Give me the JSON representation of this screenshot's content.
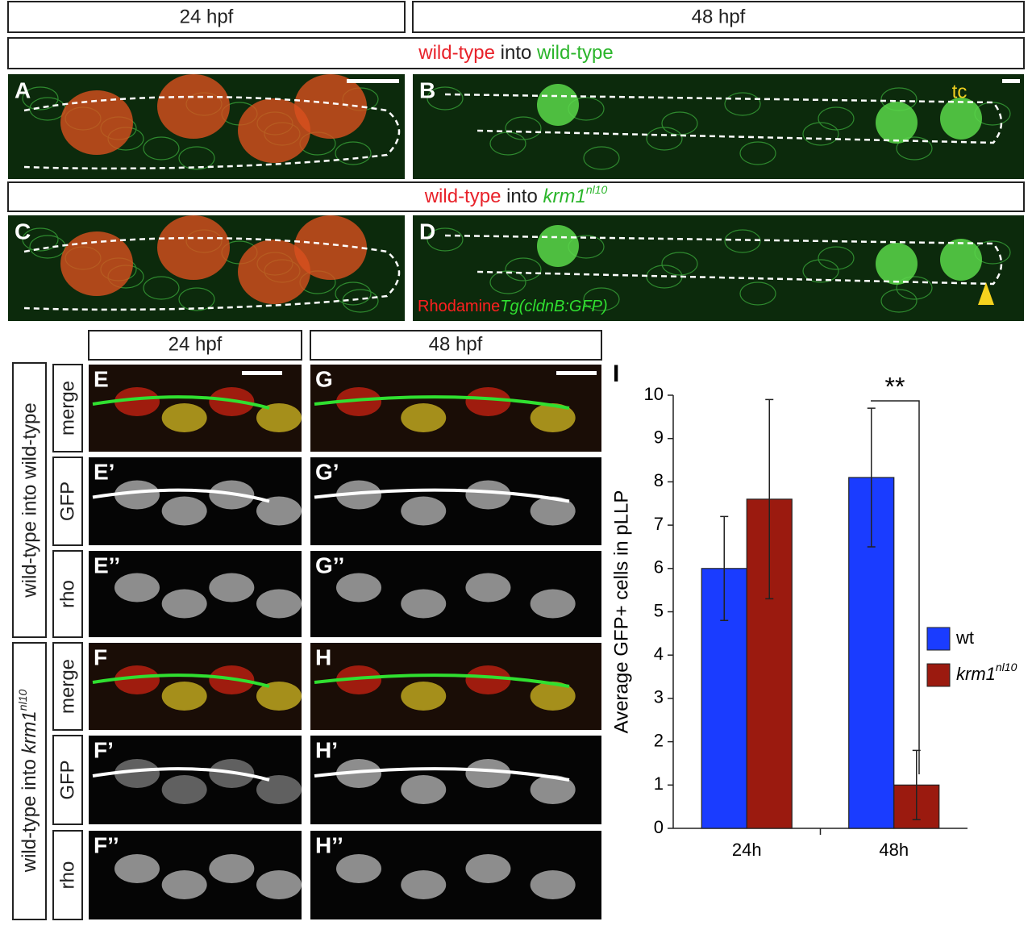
{
  "header": {
    "col_24": "24 hpf",
    "col_48": "48 hpf"
  },
  "top": {
    "row1": {
      "a": "wild-type",
      "b": "into",
      "c": "wild-type"
    },
    "row2": {
      "a": "wild-type",
      "b": "into",
      "c": "krm1",
      "c_sup": "nl10"
    },
    "panels": [
      "A",
      "B",
      "C",
      "D"
    ],
    "tc": "tc",
    "legend": {
      "a": "Rhodamine",
      "b": "Tg(cldnB:GFP)"
    }
  },
  "bottom": {
    "col_24": "24 hpf",
    "col_48": "48 hpf",
    "group1": "wild-type into wild-type",
    "group2": {
      "a": "wild-type into ",
      "b": "krm1",
      "b_sup": "nl10"
    },
    "channels": [
      "merge",
      "GFP",
      "rho",
      "merge",
      "GFP",
      "rho"
    ],
    "panels_left": [
      "E",
      "E’",
      "E’’",
      "F",
      "F’",
      "F’’"
    ],
    "panels_right": [
      "G",
      "G’",
      "G’’",
      "H",
      "H’",
      "H’’"
    ]
  },
  "chart_data": {
    "type": "bar",
    "panel_label": "I",
    "ylabel": "Average GFP+ cells in pLLP",
    "categories": [
      "24h",
      "48h"
    ],
    "series": [
      {
        "name": "wt",
        "color": "#1a3cff",
        "values": [
          6,
          8.1
        ],
        "errors": [
          1.2,
          1.6
        ]
      },
      {
        "name": "krm1",
        "name_sup": "nl10",
        "color": "#9b1a0f",
        "values": [
          7.6,
          1
        ],
        "errors": [
          2.3,
          0.8
        ]
      }
    ],
    "ylim": [
      0,
      10
    ],
    "yticks": [
      0,
      1,
      2,
      3,
      4,
      5,
      6,
      7,
      8,
      9,
      10
    ],
    "annotation": "**"
  }
}
